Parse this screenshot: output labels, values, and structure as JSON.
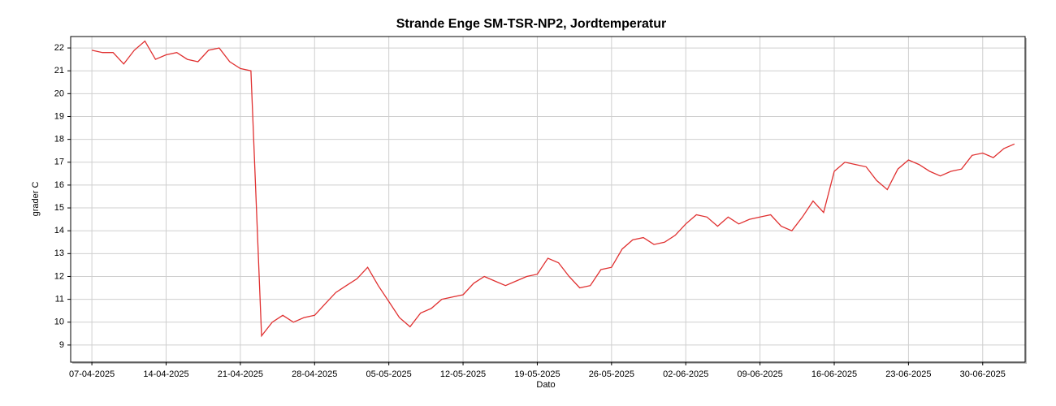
{
  "chart_data": {
    "type": "line",
    "title": "Strande Enge SM-TSR-NP2, Jordtemperatur",
    "xlabel": "Dato",
    "ylabel": "grader C",
    "x": [
      "07-04-2025",
      "08-04-2025",
      "09-04-2025",
      "10-04-2025",
      "11-04-2025",
      "12-04-2025",
      "13-04-2025",
      "14-04-2025",
      "15-04-2025",
      "16-04-2025",
      "17-04-2025",
      "18-04-2025",
      "19-04-2025",
      "20-04-2025",
      "21-04-2025",
      "22-04-2025",
      "23-04-2025",
      "24-04-2025",
      "25-04-2025",
      "26-04-2025",
      "27-04-2025",
      "28-04-2025",
      "29-04-2025",
      "30-04-2025",
      "01-05-2025",
      "02-05-2025",
      "03-05-2025",
      "04-05-2025",
      "05-05-2025",
      "06-05-2025",
      "07-05-2025",
      "08-05-2025",
      "09-05-2025",
      "10-05-2025",
      "11-05-2025",
      "12-05-2025",
      "13-05-2025",
      "14-05-2025",
      "15-05-2025",
      "16-05-2025",
      "17-05-2025",
      "18-05-2025",
      "19-05-2025",
      "20-05-2025",
      "21-05-2025",
      "22-05-2025",
      "23-05-2025",
      "24-05-2025",
      "25-05-2025",
      "26-05-2025",
      "27-05-2025",
      "28-05-2025",
      "29-05-2025",
      "30-05-2025",
      "31-05-2025",
      "01-06-2025",
      "02-06-2025",
      "03-06-2025",
      "04-06-2025",
      "05-06-2025",
      "06-06-2025",
      "07-06-2025",
      "08-06-2025",
      "09-06-2025",
      "10-06-2025",
      "11-06-2025",
      "12-06-2025",
      "13-06-2025",
      "14-06-2025",
      "15-06-2025",
      "16-06-2025",
      "17-06-2025",
      "18-06-2025",
      "19-06-2025",
      "20-06-2025",
      "21-06-2025",
      "22-06-2025",
      "23-06-2025",
      "24-06-2025",
      "25-06-2025",
      "26-06-2025",
      "27-06-2025",
      "28-06-2025",
      "29-06-2025",
      "30-06-2025",
      "01-07-2025",
      "02-07-2025",
      "03-07-2025"
    ],
    "series": [
      {
        "name": "Jordtemperatur",
        "color": "#e03030",
        "values": [
          21.9,
          21.8,
          21.8,
          21.3,
          21.9,
          22.3,
          21.5,
          21.7,
          21.8,
          21.5,
          21.4,
          21.9,
          22.0,
          21.4,
          21.1,
          21.0,
          9.4,
          10.0,
          10.3,
          10.0,
          10.2,
          10.3,
          10.8,
          11.3,
          11.6,
          11.9,
          12.4,
          11.6,
          10.9,
          10.2,
          9.8,
          10.4,
          10.6,
          11.0,
          11.1,
          11.2,
          11.7,
          12.0,
          11.8,
          11.6,
          11.8,
          12.0,
          12.1,
          12.8,
          12.6,
          12.0,
          11.5,
          11.6,
          12.3,
          12.4,
          13.2,
          13.6,
          13.7,
          13.4,
          13.5,
          13.8,
          14.3,
          14.7,
          14.6,
          14.2,
          14.6,
          14.3,
          14.5,
          14.6,
          14.7,
          14.2,
          14.0,
          14.6,
          15.3,
          14.8,
          16.6,
          17.0,
          16.9,
          16.8,
          16.2,
          15.8,
          16.7,
          17.1,
          16.9,
          16.6,
          16.4,
          16.6,
          16.7,
          17.3,
          17.4,
          17.2,
          17.6,
          17.8
        ]
      }
    ],
    "xlim": [
      "05-04-2025",
      "04-07-2025"
    ],
    "xticks": [
      "07-04-2025",
      "14-04-2025",
      "21-04-2025",
      "28-04-2025",
      "05-05-2025",
      "12-05-2025",
      "19-05-2025",
      "26-05-2025",
      "02-06-2025",
      "09-06-2025",
      "16-06-2025",
      "23-06-2025",
      "30-06-2025"
    ],
    "ylim": [
      8.25,
      22.5
    ],
    "yticks": [
      9,
      10,
      11,
      12,
      13,
      14,
      15,
      16,
      17,
      18,
      19,
      20,
      21,
      22
    ],
    "grid": true
  }
}
